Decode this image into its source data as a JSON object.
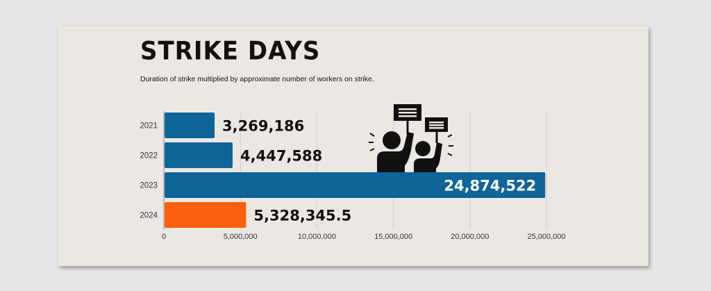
{
  "colors": {
    "page_bg": "#e6e6e8",
    "card_bg": "#ebe8e3",
    "bar_blue": "#0f6499",
    "bar_orange": "#fb5f0f",
    "gridline": "#cfcfcf",
    "text_dark": "#111111",
    "label_light": "#ffffff"
  },
  "header": {
    "title": "STRIKE DAYS",
    "subtitle": "Duration of strike multiplied by approximate number of workers on strike."
  },
  "illustration": {
    "icon": "protesters-holding-signs-icon"
  },
  "chart_data": {
    "type": "bar",
    "orientation": "horizontal",
    "title": "STRIKE DAYS",
    "subtitle": "Duration of strike multiplied by approximate number of workers on strike.",
    "categories": [
      "2021",
      "2022",
      "2023",
      "2024"
    ],
    "values": [
      3269186,
      4447588,
      24874522,
      5328345.5
    ],
    "data_labels": [
      "3,269,186",
      "4,447,588",
      "24,874,522",
      "5,328,345.5"
    ],
    "bar_colors": [
      "#0f6499",
      "#0f6499",
      "#0f6499",
      "#fb5f0f"
    ],
    "label_inside": [
      false,
      false,
      true,
      false
    ],
    "xlim": [
      0,
      25000000
    ],
    "xticks": [
      0,
      5000000,
      10000000,
      15000000,
      20000000,
      25000000
    ],
    "xtick_labels": [
      "0",
      "5,000,000",
      "10,000,000",
      "15,000,000",
      "20,000,000",
      "25,000,000"
    ],
    "xlabel": "",
    "ylabel": "",
    "grid": "vertical",
    "legend": "none"
  }
}
